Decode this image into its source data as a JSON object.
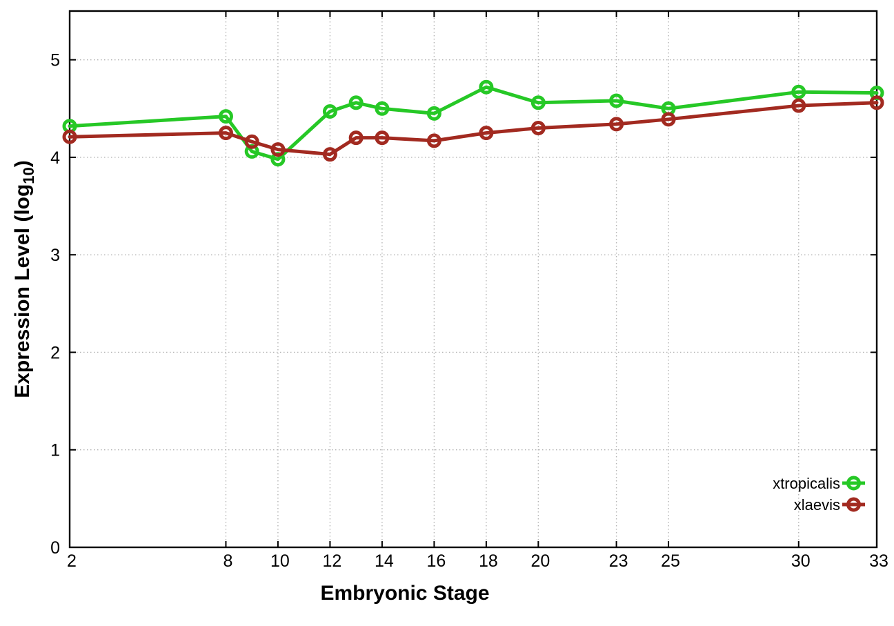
{
  "page": {
    "background": "#ffffff"
  },
  "chart_data": {
    "type": "line",
    "title": "",
    "xlabel": "Embryonic Stage",
    "ylabel": "Expression Level (log10)",
    "ylabel_parts": {
      "prefix": "Expression Level (log",
      "subscript": "10",
      "suffix": ")"
    },
    "x": [
      2,
      8,
      9,
      10,
      12,
      13,
      14,
      16,
      18,
      20,
      23,
      25,
      30,
      33
    ],
    "xticks": [
      2,
      8,
      10,
      12,
      14,
      16,
      18,
      20,
      23,
      25,
      30,
      33
    ],
    "yticks": [
      0,
      1,
      2,
      3,
      4,
      5
    ],
    "xlim": [
      2,
      33
    ],
    "ylim": [
      0,
      5.5
    ],
    "grid": true,
    "grid_color": "#b3b3b3",
    "border_color": "#000000",
    "legend": {
      "position": "inside-bottom-right",
      "entries": [
        "xtropicalis",
        "xlaevis"
      ]
    },
    "series": [
      {
        "name": "xtropicalis",
        "color": "#26c826",
        "values": [
          4.32,
          4.42,
          4.06,
          3.98,
          4.47,
          4.56,
          4.5,
          4.45,
          4.72,
          4.56,
          4.58,
          4.5,
          4.67,
          4.66
        ]
      },
      {
        "name": "xlaevis",
        "color": "#a22a20",
        "values": [
          4.21,
          4.25,
          4.16,
          4.08,
          4.03,
          4.2,
          4.2,
          4.17,
          4.25,
          4.3,
          4.34,
          4.39,
          4.53,
          4.56
        ]
      }
    ]
  }
}
